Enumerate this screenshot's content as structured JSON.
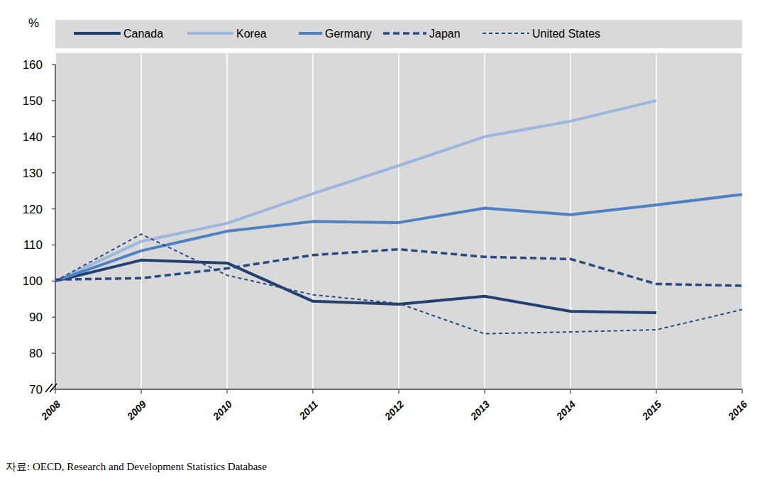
{
  "chart_data": {
    "type": "line",
    "ylabel": "%",
    "annotations": [
      "자료: OECD, Research and Development Statistics Database"
    ],
    "x": [
      2008,
      2009,
      2010,
      2011,
      2012,
      2013,
      2014,
      2015,
      2016
    ],
    "xlim": [
      2008,
      2016
    ],
    "xticks": [
      2008,
      2009,
      2010,
      2011,
      2012,
      2013,
      2014,
      2015,
      2016
    ],
    "ylim": [
      70,
      160
    ],
    "yticks": [
      70,
      80,
      90,
      100,
      110,
      120,
      130,
      140,
      150,
      160
    ],
    "grid": "x",
    "legend": "top",
    "series": [
      {
        "name": "Canada",
        "color": "#22406f",
        "line_style": "solid",
        "values": [
          100,
          105.8,
          105,
          94.4,
          93.6,
          95.8,
          91.6,
          91.2,
          null
        ]
      },
      {
        "name": "Korea",
        "color": "#9bb7de",
        "line_style": "solid",
        "values": [
          100,
          111,
          116,
          124.2,
          132,
          140,
          144.3,
          150,
          null
        ]
      },
      {
        "name": "Germany",
        "color": "#4f80c2",
        "line_style": "solid",
        "values": [
          100,
          108.4,
          113.8,
          116.5,
          116.2,
          120.2,
          118.4,
          121.1,
          124
        ]
      },
      {
        "name": "Japan",
        "color": "#284a82",
        "line_style": "dashed",
        "values": [
          100.4,
          100.8,
          103.5,
          107.2,
          108.8,
          106.7,
          106.1,
          99.2,
          98.7
        ]
      },
      {
        "name": "United States",
        "color": "#284a82",
        "line_style": "short-dashed",
        "values": [
          100,
          113,
          101.6,
          96.2,
          93.8,
          85.4,
          85.9,
          86.5,
          92.1
        ]
      }
    ]
  }
}
